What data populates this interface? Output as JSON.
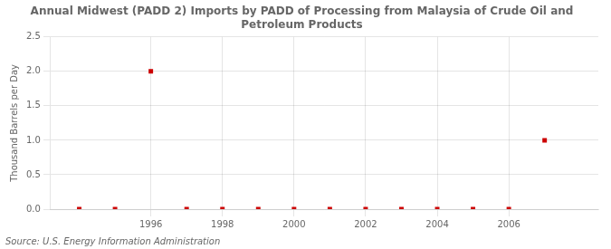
{
  "chart_data": {
    "type": "scatter",
    "title": "Annual Midwest (PADD 2) Imports by PADD of Processing from Malaysia of Crude Oil and\nPetroleum Products",
    "ylabel": "Thousand Barrels per Day",
    "source": "Source: U.S. Energy Information Administration",
    "x": [
      1994,
      1995,
      1996,
      1997,
      1998,
      1999,
      2000,
      2001,
      2002,
      2003,
      2004,
      2005,
      2006,
      2007
    ],
    "values": [
      0,
      0,
      2.0,
      0,
      0,
      0,
      0,
      0,
      0,
      0,
      0,
      0,
      0,
      1.0
    ],
    "color": "#cc0000",
    "marker": "square",
    "xlim": [
      1993.2,
      2008.5
    ],
    "xticks": [
      1996,
      1998,
      2000,
      2002,
      2004,
      2006
    ],
    "ylim": [
      0,
      2.5
    ],
    "yticks": [
      {
        "value": 0,
        "label": "0.0"
      },
      0.5,
      {
        "value": 1,
        "label": "1.0"
      },
      1.5,
      {
        "value": 2,
        "label": "2.0"
      },
      2.5
    ],
    "grid": true
  }
}
